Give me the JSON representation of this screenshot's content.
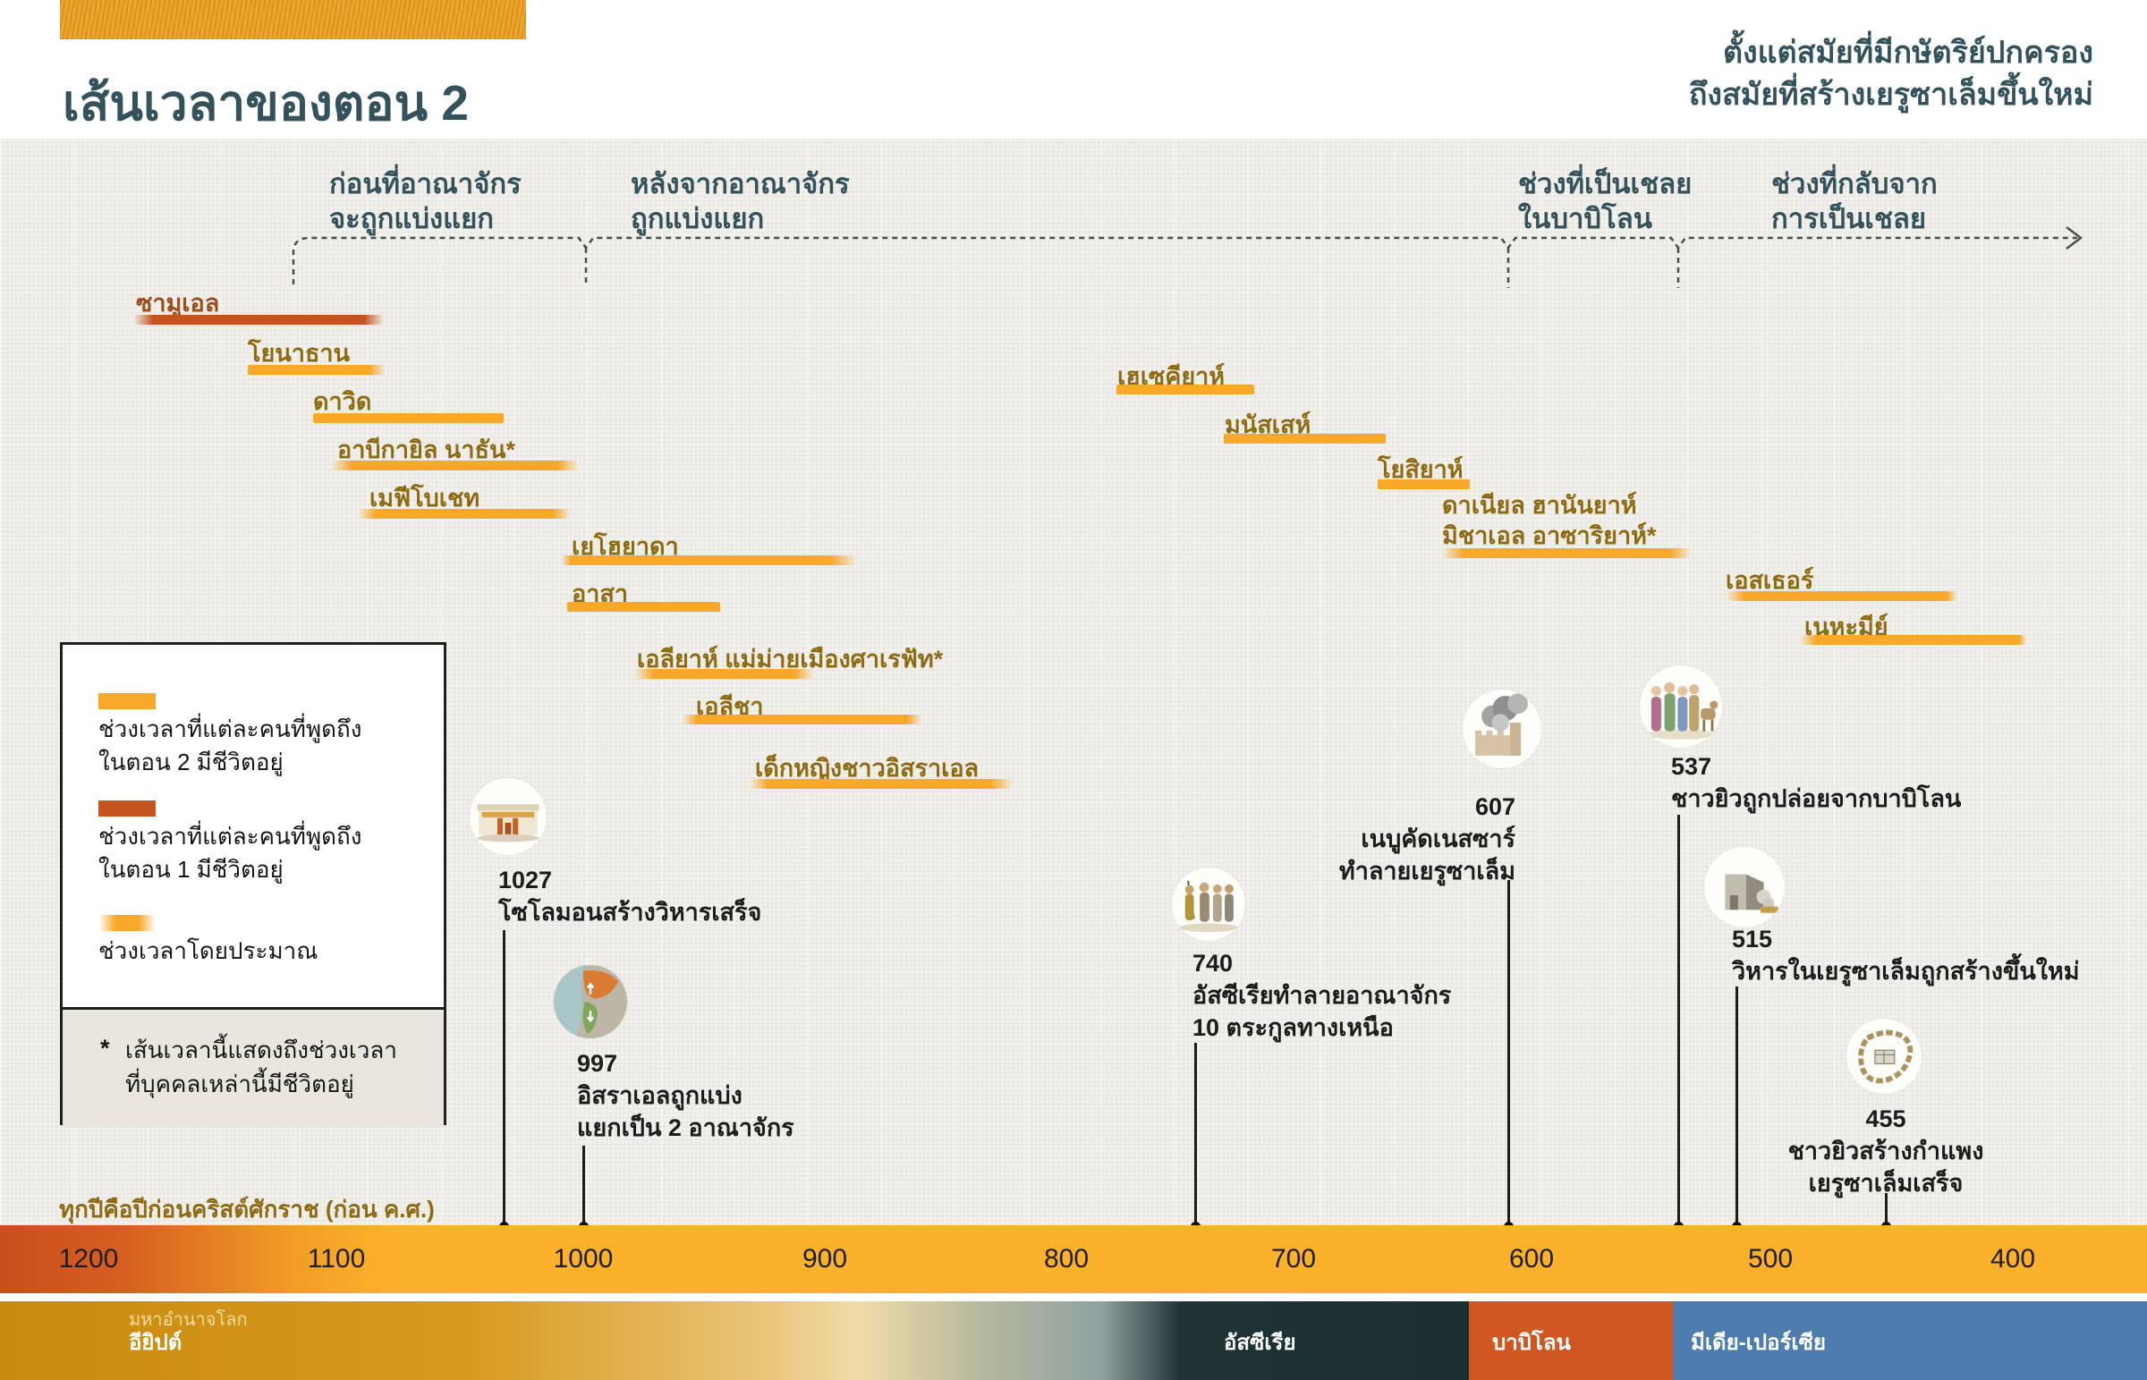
{
  "masthead": {
    "title": "เส้นเวลาของตอน 2",
    "subtitle_line1": "ตั้งแต่สมัยที่มีกษัตริย์ปกครอง",
    "subtitle_line2": "ถึงสมัยที่สร้างเยรูซาเล็มขึ้นใหม่"
  },
  "periods": [
    {
      "id": "before-kingdom-divided",
      "lines": [
        "ก่อนที่อาณาจักร",
        "จะถูกแบ่งแยก"
      ]
    },
    {
      "id": "after-kingdom-divided",
      "lines": [
        "หลังจากอาณาจักร",
        "ถูกแบ่งแยก"
      ]
    },
    {
      "id": "captivity-in-babylon",
      "lines": [
        "ช่วงที่เป็นเชลย",
        "ในบาบิโลน"
      ]
    },
    {
      "id": "return-from-captivity",
      "lines": [
        "ช่วงที่กลับจาก",
        "การเป็นเชลย"
      ]
    }
  ],
  "people": [
    {
      "name": "ซามูเอล",
      "style": "part1",
      "span_estimate": [
        1180,
        1077
      ]
    },
    {
      "name": "โยนาธาน",
      "style": "part2",
      "span_estimate": [
        1135,
        1077
      ]
    },
    {
      "name": "ดาวิด",
      "style": "part2",
      "span_estimate": [
        1107,
        1027
      ]
    },
    {
      "name": "อาบีกายิล นาธัน*",
      "style": "part2",
      "span_estimate": [
        1100,
        995
      ]
    },
    {
      "name": "เมฟีโบเชท",
      "style": "part2",
      "span_estimate": [
        1090,
        1000
      ]
    },
    {
      "name": "เยโฮยาดา",
      "style": "part2",
      "span_estimate": [
        1005,
        880
      ]
    },
    {
      "name": "อาสา",
      "style": "part2",
      "span_estimate": [
        1000,
        937
      ]
    },
    {
      "name": "เอลียาห์ แม่ม่ายเมืองศาเรฟัท*",
      "style": "part2",
      "span_estimate": [
        975,
        898
      ]
    },
    {
      "name": "เอลีชา",
      "style": "part2",
      "span_estimate": [
        955,
        855
      ]
    },
    {
      "name": "เด็กหญิงชาวอิสราเอล",
      "style": "part2",
      "span_estimate": [
        925,
        815
      ]
    },
    {
      "name": "เฮเซคียาห์",
      "style": "part2",
      "span_estimate": [
        773,
        715
      ]
    },
    {
      "name": "มนัสเสห์",
      "style": "part2",
      "span_estimate": [
        728,
        661
      ]
    },
    {
      "name": "โยสิยาห์",
      "style": "part2",
      "span_estimate": [
        664,
        626
      ]
    },
    {
      "name": "ดาเนียล ฮานันยาห์",
      "name_line2": "มิชาเอล อาซาริยาห์*",
      "style": "part2",
      "span_estimate": [
        637,
        535
      ]
    },
    {
      "name": "เอสเธอร์",
      "style": "part2",
      "span_estimate": [
        520,
        423
      ]
    },
    {
      "name": "เนหะมีย์",
      "style": "part2",
      "span_estimate": [
        490,
        395
      ]
    }
  ],
  "events": [
    {
      "year": "1027",
      "lines": [
        "โซโลมอนสร้างวิหารเสร็จ"
      ],
      "icon": "temple-completed-icon"
    },
    {
      "year": "997",
      "lines": [
        "อิสราเอลถูกแบ่ง",
        "แยกเป็น 2 อาณาจักร"
      ],
      "icon": "divided-kingdom-map-icon"
    },
    {
      "year": "740",
      "lines": [
        "อัสซีเรียทำลายอาณาจักร",
        "10 ตระกูลทางเหนือ"
      ],
      "icon": "captives-marching-icon"
    },
    {
      "year": "607",
      "lines": [
        "เนบูคัดเนสซาร์",
        "ทำลายเยรูซาเล็ม"
      ],
      "icon": "jerusalem-burning-icon"
    },
    {
      "year": "537",
      "lines": [
        "ชาวยิวถูกปล่อยจากบาบิโลน"
      ],
      "icon": "jews-released-icon"
    },
    {
      "year": "515",
      "lines": [
        "วิหารในเยรูซาเล็มถูกสร้างขึ้นใหม่"
      ],
      "icon": "temple-rebuilt-icon"
    },
    {
      "year": "455",
      "lines": [
        "ชาวยิวสร้างกำแพง",
        "เยรูซาเล็มเสร็จ"
      ],
      "icon": "jerusalem-wall-icon"
    }
  ],
  "legend": {
    "items": [
      {
        "swatch": "part2",
        "lines": [
          "ช่วงเวลาที่แต่ละคนที่พูดถึง",
          "ในตอน 2 มีชีวิตอยู่"
        ]
      },
      {
        "swatch": "part1",
        "lines": [
          "ช่วงเวลาที่แต่ละคนที่พูดถึง",
          "ในตอน 1 มีชีวิตอยู่"
        ]
      },
      {
        "swatch": "approximate",
        "lines": [
          "ช่วงเวลาโดยประมาณ"
        ]
      }
    ],
    "footnote_marker": "*",
    "footnote_lines": [
      "เส้นเวลานี้แสดงถึงช่วงเวลา",
      "ที่บุคคลเหล่านี้มีชีวิตอยู่"
    ]
  },
  "axis": {
    "note": "ทุกปีคือปีก่อนคริสต์ศักราช (ก่อน ค.ศ.)",
    "ticks": [
      "1200",
      "1100",
      "1000",
      "900",
      "800",
      "700",
      "600",
      "500",
      "400"
    ]
  },
  "world_powers": {
    "heading": "มหาอำนาจโลก",
    "powers": [
      {
        "name": "อียิปต์",
        "color": "#c98a10"
      },
      {
        "name": "อัสซีเรีย",
        "color": "#1c2e2f"
      },
      {
        "name": "บาบิโลน",
        "color": "#d05722"
      },
      {
        "name": "มีเดีย-เปอร์เซีย",
        "color": "#4c7dae"
      }
    ]
  },
  "colors": {
    "part2_bar": "#f7a828",
    "part1_bar": "#c4531f",
    "part2_label": "#8e6a12",
    "part1_label": "#9a4e1c",
    "heading_teal": "#33525b",
    "ink": "#1c1c1c",
    "canvas": "#efede8",
    "axis_yellow": "#fbb12b",
    "axis_red": "#cb4e1d"
  }
}
